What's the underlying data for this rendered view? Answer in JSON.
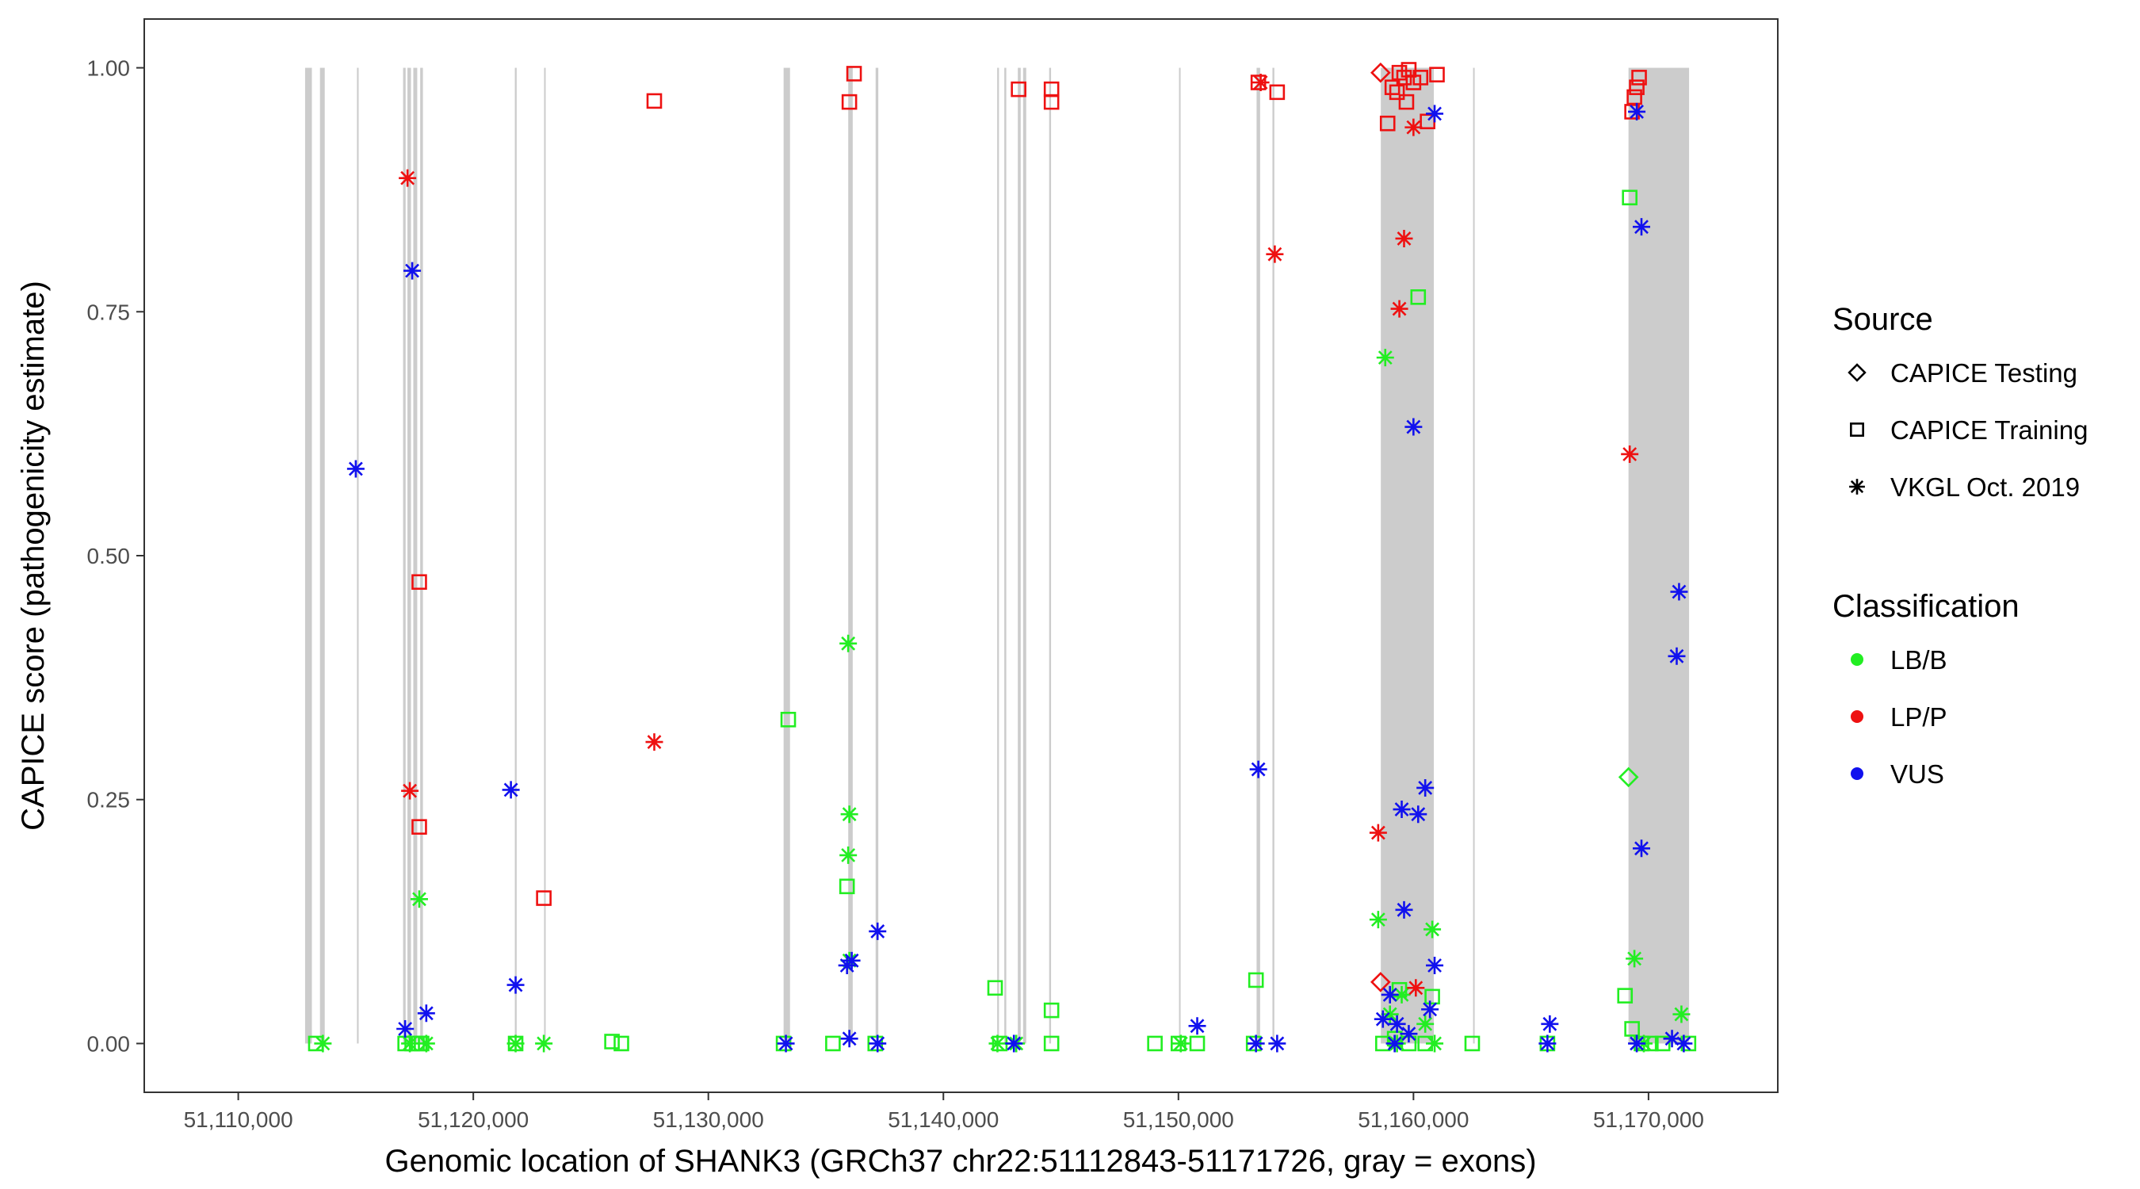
{
  "chart_data": {
    "type": "scatter",
    "xlabel": "Genomic location of SHANK3 (GRCh37 chr22:51112843-51171726, gray = exons)",
    "ylabel": "CAPICE score (pathogenicity estimate)",
    "xlim": [
      51106000,
      51175500
    ],
    "ylim": [
      -0.05,
      1.05
    ],
    "x_ticks": [
      51110000,
      51120000,
      51130000,
      51140000,
      51150000,
      51160000,
      51170000
    ],
    "x_tick_labels": [
      "51,110,000",
      "51,120,000",
      "51,130,000",
      "51,140,000",
      "51,150,000",
      "51,160,000",
      "51,170,000"
    ],
    "y_ticks": [
      0,
      0.25,
      0.5,
      0.75,
      1.0
    ],
    "y_tick_labels": [
      "0.00",
      "0.25",
      "0.50",
      "0.75",
      "1.00"
    ],
    "grid": false,
    "exons": [
      [
        51112843,
        51113132
      ],
      [
        51113476,
        51113679
      ],
      [
        51115050,
        51115121
      ],
      [
        51117013,
        51117121
      ],
      [
        51117197,
        51117348
      ],
      [
        51117447,
        51117614
      ],
      [
        51117740,
        51117856
      ],
      [
        51121767,
        51121845
      ],
      [
        51123012,
        51123079
      ],
      [
        51133202,
        51133475
      ],
      [
        51135951,
        51136143
      ],
      [
        51137117,
        51137231
      ],
      [
        51142289,
        51142364
      ],
      [
        51142592,
        51142676
      ],
      [
        51143166,
        51143290
      ],
      [
        51143391,
        51143524
      ],
      [
        51144500,
        51144580
      ],
      [
        51150042,
        51150076
      ],
      [
        51153325,
        51153475
      ],
      [
        51154000,
        51154080
      ],
      [
        51158611,
        51160865
      ],
      [
        51162550,
        51162590
      ],
      [
        51169149,
        51171726
      ]
    ],
    "legend": {
      "source_title": "Source",
      "source_items": [
        {
          "label": "CAPICE Testing",
          "shape": "diamond"
        },
        {
          "label": "CAPICE Training",
          "shape": "square"
        },
        {
          "label": "VKGL Oct. 2019",
          "shape": "asterisk"
        }
      ],
      "class_title": "Classification",
      "class_items": [
        {
          "label": "LB/B",
          "color": "#22ee22"
        },
        {
          "label": "LP/P",
          "color": "#ee1111"
        },
        {
          "label": "VUS",
          "color": "#1111ee"
        }
      ],
      "placement": "right"
    },
    "series": [
      {
        "source": "CAPICE Testing",
        "classification": "LB/B",
        "shape": "diamond",
        "color": "#22ee22",
        "points": [
          [
            51169150,
            0.273
          ]
        ]
      },
      {
        "source": "CAPICE Testing",
        "classification": "LP/P",
        "shape": "diamond",
        "color": "#ee1111",
        "points": [
          [
            51158600,
            0.995
          ],
          [
            51158600,
            0.063
          ]
        ]
      },
      {
        "source": "CAPICE Training",
        "classification": "LB/B",
        "shape": "square",
        "color": "#22ee22",
        "points": [
          [
            51113300,
            0.0
          ],
          [
            51117100,
            0.0
          ],
          [
            51117400,
            0.0
          ],
          [
            51117600,
            0.0
          ],
          [
            51117800,
            0.0
          ],
          [
            51121800,
            0.0
          ],
          [
            51125900,
            0.002
          ],
          [
            51126300,
            0.0
          ],
          [
            51133200,
            0.0
          ],
          [
            51133400,
            0.332
          ],
          [
            51135300,
            0.0
          ],
          [
            51135900,
            0.161
          ],
          [
            51137100,
            0.0
          ],
          [
            51142200,
            0.057
          ],
          [
            51142400,
            0.0
          ],
          [
            51144600,
            0.034
          ],
          [
            51144600,
            0.0
          ],
          [
            51149000,
            0.0
          ],
          [
            51150000,
            0.0
          ],
          [
            51150800,
            0.0
          ],
          [
            51153300,
            0.065
          ],
          [
            51153200,
            0.0
          ],
          [
            51158700,
            0.0
          ],
          [
            51159200,
            0.005
          ],
          [
            51159400,
            0.055
          ],
          [
            51159800,
            0.0
          ],
          [
            51160200,
            0.765
          ],
          [
            51160500,
            0.0
          ],
          [
            51160800,
            0.048
          ],
          [
            51162500,
            0.0
          ],
          [
            51165700,
            0.0
          ],
          [
            51169000,
            0.049
          ],
          [
            51169200,
            0.867
          ],
          [
            51169300,
            0.015
          ],
          [
            51169700,
            0.0
          ],
          [
            51170100,
            0.0
          ],
          [
            51170600,
            0.0
          ],
          [
            51171700,
            0.0
          ]
        ]
      },
      {
        "source": "CAPICE Training",
        "classification": "LP/P",
        "shape": "square",
        "color": "#ee1111",
        "points": [
          [
            51117700,
            0.473
          ],
          [
            51117700,
            0.222
          ],
          [
            51123000,
            0.149
          ],
          [
            51127700,
            0.966
          ],
          [
            51136000,
            0.965
          ],
          [
            51136200,
            0.994
          ],
          [
            51143200,
            0.978
          ],
          [
            51144600,
            0.978
          ],
          [
            51144600,
            0.965
          ],
          [
            51153400,
            0.985
          ],
          [
            51154200,
            0.975
          ],
          [
            51158900,
            0.943
          ],
          [
            51159100,
            0.98
          ],
          [
            51159300,
            0.975
          ],
          [
            51159400,
            0.995
          ],
          [
            51159600,
            0.99
          ],
          [
            51159700,
            0.965
          ],
          [
            51159800,
            0.998
          ],
          [
            51160000,
            0.985
          ],
          [
            51160300,
            0.99
          ],
          [
            51160600,
            0.945
          ],
          [
            51161000,
            0.993
          ],
          [
            51169300,
            0.955
          ],
          [
            51169400,
            0.97
          ],
          [
            51169500,
            0.98
          ],
          [
            51169600,
            0.99
          ]
        ]
      },
      {
        "source": "VKGL Oct. 2019",
        "classification": "LB/B",
        "shape": "asterisk",
        "color": "#22ee22",
        "points": [
          [
            51113600,
            0.0
          ],
          [
            51117300,
            0.0
          ],
          [
            51117700,
            0.148
          ],
          [
            51118000,
            0.0
          ],
          [
            51121800,
            0.0
          ],
          [
            51123000,
            0.0
          ],
          [
            51135950,
            0.41
          ],
          [
            51136000,
            0.235
          ],
          [
            51135950,
            0.193
          ],
          [
            51136000,
            0.085
          ],
          [
            51142300,
            0.0
          ],
          [
            51143100,
            0.0
          ],
          [
            51150100,
            0.0
          ],
          [
            51158500,
            0.127
          ],
          [
            51158800,
            0.703
          ],
          [
            51159000,
            0.03
          ],
          [
            51159300,
            0.0
          ],
          [
            51159500,
            0.05
          ],
          [
            51160500,
            0.02
          ],
          [
            51160800,
            0.117
          ],
          [
            51160900,
            0.0
          ],
          [
            51169400,
            0.087
          ],
          [
            51171400,
            0.03
          ],
          [
            51169800,
            0.0
          ]
        ]
      },
      {
        "source": "VKGL Oct. 2019",
        "classification": "LP/P",
        "shape": "asterisk",
        "color": "#ee1111",
        "points": [
          [
            51117200,
            0.887
          ],
          [
            51117300,
            0.259
          ],
          [
            51127700,
            0.309
          ],
          [
            51153500,
            0.985
          ],
          [
            51154100,
            0.809
          ],
          [
            51158500,
            0.216
          ],
          [
            51159400,
            0.753
          ],
          [
            51159600,
            0.825
          ],
          [
            51160000,
            0.939
          ],
          [
            51160100,
            0.057
          ],
          [
            51169200,
            0.604
          ]
        ]
      },
      {
        "source": "VKGL Oct. 2019",
        "classification": "VUS",
        "shape": "asterisk",
        "color": "#1111ee",
        "points": [
          [
            51115000,
            0.589
          ],
          [
            51117400,
            0.792
          ],
          [
            51117100,
            0.015
          ],
          [
            51118000,
            0.031
          ],
          [
            51121600,
            0.26
          ],
          [
            51121800,
            0.06
          ],
          [
            51133300,
            0.0
          ],
          [
            51135900,
            0.08
          ],
          [
            51136100,
            0.085
          ],
          [
            51136000,
            0.005
          ],
          [
            51137200,
            0.115
          ],
          [
            51137200,
            0.0
          ],
          [
            51143000,
            0.0
          ],
          [
            51150800,
            0.018
          ],
          [
            51153400,
            0.281
          ],
          [
            51153300,
            0.0
          ],
          [
            51154200,
            0.0
          ],
          [
            51158700,
            0.025
          ],
          [
            51159000,
            0.05
          ],
          [
            51159500,
            0.24
          ],
          [
            51159600,
            0.137
          ],
          [
            51160000,
            0.632
          ],
          [
            51160200,
            0.235
          ],
          [
            51160500,
            0.262
          ],
          [
            51160700,
            0.035
          ],
          [
            51160900,
            0.08
          ],
          [
            51160900,
            0.953
          ],
          [
            51159300,
            0.02
          ],
          [
            51159800,
            0.01
          ],
          [
            51159200,
            0.0
          ],
          [
            51165800,
            0.02
          ],
          [
            51165700,
            0.0
          ],
          [
            51169500,
            0.955
          ],
          [
            51169700,
            0.837
          ],
          [
            51169700,
            0.2
          ],
          [
            51169500,
            0.0
          ],
          [
            51171300,
            0.463
          ],
          [
            51171200,
            0.397
          ],
          [
            51171000,
            0.005
          ],
          [
            51171500,
            0.0
          ]
        ]
      }
    ]
  }
}
